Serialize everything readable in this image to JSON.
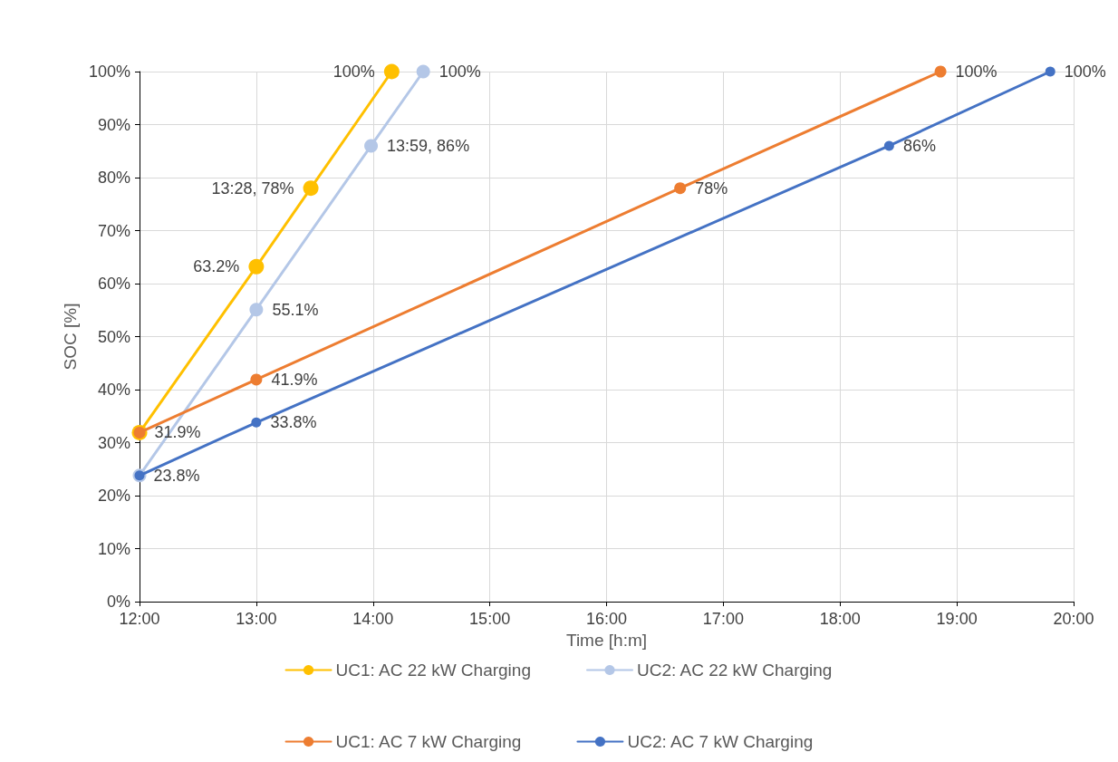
{
  "chart_data": {
    "type": "line",
    "xlabel": "Time [h:m]",
    "ylabel": "SOC [%]",
    "xlim": [
      12,
      20
    ],
    "xticks": [
      {
        "value": 12,
        "label": "12:00"
      },
      {
        "value": 13,
        "label": "13:00"
      },
      {
        "value": 14,
        "label": "14:00"
      },
      {
        "value": 15,
        "label": "15:00"
      },
      {
        "value": 16,
        "label": "16:00"
      },
      {
        "value": 17,
        "label": "17:00"
      },
      {
        "value": 18,
        "label": "18:00"
      },
      {
        "value": 19,
        "label": "19:00"
      },
      {
        "value": 20,
        "label": "20:00"
      }
    ],
    "ylim": [
      0,
      100
    ],
    "yticks": [
      {
        "value": 0,
        "label": "0%"
      },
      {
        "value": 10,
        "label": "10%"
      },
      {
        "value": 20,
        "label": "20%"
      },
      {
        "value": 30,
        "label": "30%"
      },
      {
        "value": 40,
        "label": "40%"
      },
      {
        "value": 50,
        "label": "50%"
      },
      {
        "value": 60,
        "label": "60%"
      },
      {
        "value": 70,
        "label": "70%"
      },
      {
        "value": 80,
        "label": "80%"
      },
      {
        "value": 90,
        "label": "90%"
      },
      {
        "value": 100,
        "label": "100%"
      }
    ],
    "grid": true,
    "legend": "bottom",
    "marker": "circle",
    "line_style": "solid",
    "series": [
      {
        "name": "UC1: AC 22 kW Charging",
        "color": "#ffc000",
        "x": [
          12,
          13,
          13.467,
          14.16
        ],
        "values": [
          31.9,
          63.2,
          78,
          100
        ],
        "value_labels": [
          null,
          "63.2%",
          "13:28, 78%",
          "100%"
        ]
      },
      {
        "name": "UC2: AC 22 kW Charging",
        "color": "#b4c7e7",
        "x": [
          12,
          13,
          13.983,
          14.43
        ],
        "values": [
          23.8,
          55.1,
          86,
          100
        ],
        "value_labels": [
          null,
          "55.1%",
          "13:59, 86%",
          "100%"
        ]
      },
      {
        "name": "UC1: AC 7 kW Charging",
        "color": "#ed7d31",
        "x": [
          12,
          13,
          16.63,
          18.86
        ],
        "values": [
          31.9,
          41.9,
          78,
          100
        ],
        "value_labels": [
          "31.9%",
          "41.9%",
          "78%",
          "100%"
        ]
      },
      {
        "name": "UC2: AC 7 kW Charging",
        "color": "#4472c4",
        "x": [
          12,
          13,
          18.42,
          19.8
        ],
        "values": [
          23.8,
          33.8,
          86,
          100
        ],
        "value_labels": [
          "23.8%",
          "33.8%",
          "86%",
          "100%"
        ]
      }
    ]
  }
}
